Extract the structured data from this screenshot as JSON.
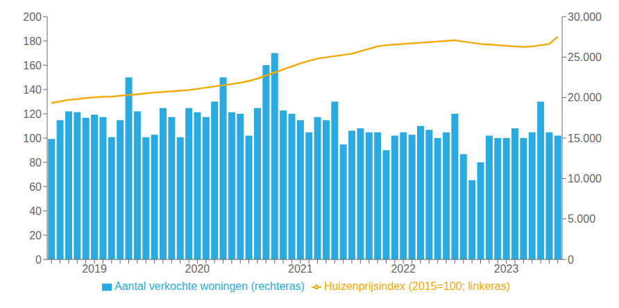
{
  "chart_data": {
    "type": "bar",
    "categories": [
      null,
      null,
      null,
      null,
      null,
      "2019",
      null,
      null,
      null,
      null,
      null,
      null,
      null,
      null,
      null,
      null,
      null,
      "2020",
      null,
      null,
      null,
      null,
      null,
      null,
      null,
      null,
      null,
      null,
      null,
      "2021",
      null,
      null,
      null,
      null,
      null,
      null,
      null,
      null,
      null,
      null,
      null,
      "2022",
      null,
      null,
      null,
      null,
      null,
      null,
      null,
      null,
      null,
      null,
      null,
      "2023",
      null,
      null,
      null,
      null,
      null,
      null
    ],
    "series": [
      {
        "name": "Aantal verkochte woningen (rechteras)",
        "type": "bar",
        "color": "#29abe2",
        "axis": "y2",
        "values": [
          14900,
          17200,
          18300,
          18200,
          17500,
          17900,
          17600,
          15100,
          17200,
          22500,
          18300,
          15100,
          15400,
          18700,
          17600,
          15100,
          18700,
          18200,
          17600,
          19500,
          22500,
          18200,
          18000,
          15300,
          18700,
          24000,
          25500,
          18400,
          18000,
          17200,
          15700,
          17600,
          17200,
          19500,
          14200,
          15900,
          16200,
          15700,
          15700,
          13500,
          15300,
          15700,
          15400,
          16500,
          16000,
          15000,
          15700,
          18000,
          13000,
          9800,
          12000,
          15300,
          15000,
          15000,
          16200,
          15000,
          15700,
          19500,
          15700,
          15300
        ]
      },
      {
        "name": "Huizenprijsindex (2015=100; linkeras)",
        "type": "line",
        "color": "#f5a800",
        "values": [
          128.8,
          130.2,
          131.5,
          132.0,
          133.0,
          133.5,
          134.0,
          134.2,
          134.8,
          135.5,
          136.0,
          136.8,
          137.5,
          138.0,
          138.5,
          139.0,
          139.5,
          140.5,
          141.5,
          142.5,
          143.5,
          144.5,
          145.5,
          147.0,
          149.0,
          151.5,
          154.0,
          156.5,
          159.0,
          161.5,
          163.5,
          165.5,
          166.5,
          167.5,
          168.5,
          169.5,
          171.5,
          173.5,
          175.5,
          176.5,
          177.0,
          177.5,
          178.0,
          178.5,
          179.0,
          179.5,
          180.0,
          180.5,
          179.5,
          178.5,
          177.5,
          177.0,
          176.5,
          176.0,
          175.5,
          175.0,
          175.5,
          176.5,
          177.5,
          183.5
        ]
      }
    ],
    "ylim": [
      0,
      200
    ],
    "yticks": [
      0,
      20,
      40,
      60,
      80,
      100,
      120,
      140,
      160,
      180,
      200
    ],
    "y2lim": [
      0,
      30000
    ],
    "y2ticks": [
      0,
      {
        "value": 5000,
        "label": "5.000"
      },
      {
        "value": 10000,
        "label": "10.000"
      },
      {
        "value": 15000,
        "label": "15.000"
      },
      {
        "value": 20000,
        "label": "20.000"
      },
      {
        "value": 25000,
        "label": "25.000"
      },
      {
        "value": 30000,
        "label": "30.000"
      }
    ],
    "grid": false,
    "legend": "bottom"
  }
}
